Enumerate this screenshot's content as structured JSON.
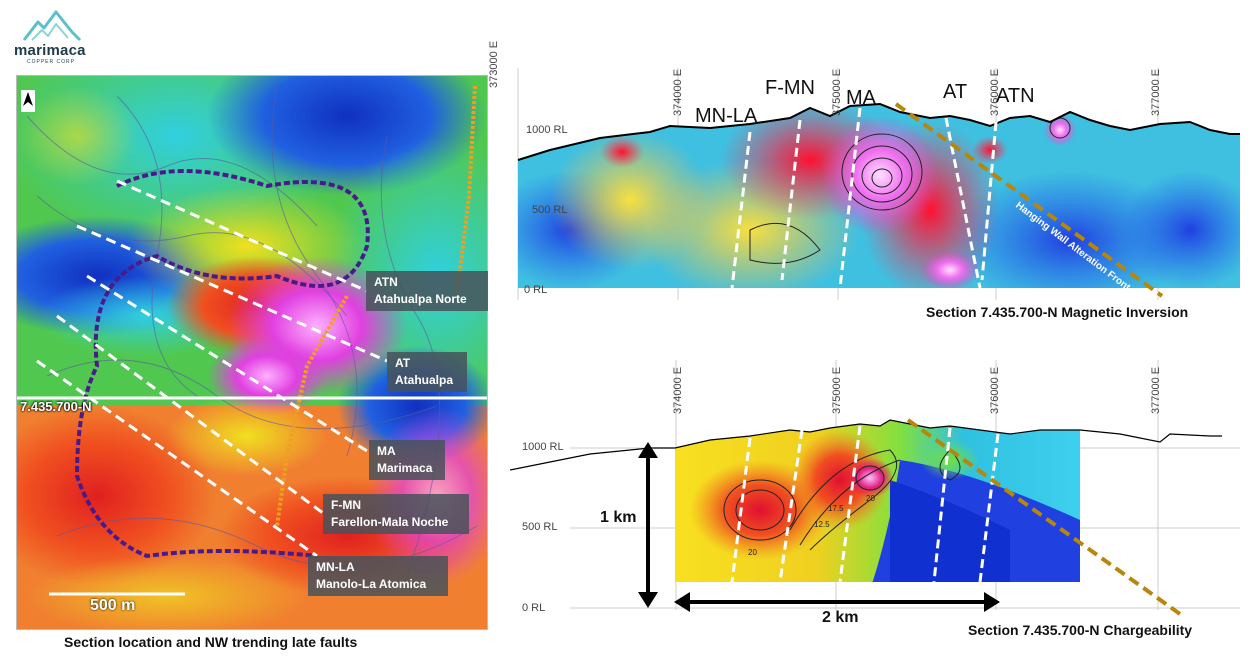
{
  "logo": {
    "name": "marimaca",
    "tagline": "COPPER CORP"
  },
  "map": {
    "caption": "Section location and NW trending late faults",
    "section_line_label": "7.435.700-N",
    "scale_bar_label": "500 m",
    "fault_labels": [
      {
        "code": "ATN",
        "name": "Atahualpa Norte"
      },
      {
        "code": "AT",
        "name": "Atahualpa"
      },
      {
        "code": "MA",
        "name": "Marimaca"
      },
      {
        "code": "F-MN",
        "name": "Farellon-Mala Noche"
      },
      {
        "code": "MN-LA",
        "name": "Manolo-La Atomica"
      }
    ]
  },
  "magnetic_section": {
    "title": "Section 7.435.700-N Magnetic Inversion",
    "eastings": [
      "373000 E",
      "374000 E",
      "375000 E",
      "376000 E",
      "377000 E"
    ],
    "rl_labels": [
      "1000 RL",
      "500 RL",
      "0 RL"
    ],
    "fault_labels": [
      "MN-LA",
      "F-MN",
      "MA",
      "AT",
      "ATN"
    ],
    "front_label": "Hanging Wall Alteration Front"
  },
  "chargeability_section": {
    "title": "Section 7.435.700-N Chargeability",
    "eastings": [
      "374000 E",
      "375000 E",
      "376000 E",
      "377000 E"
    ],
    "rl_labels": [
      "1000 RL",
      "500 RL",
      "0 RL"
    ],
    "vertical_dimension": "1 km",
    "horizontal_dimension": "2 km",
    "contour_labels": [
      "20",
      "12.5",
      "17.5",
      "20"
    ]
  },
  "colors": {
    "fault_dash": "#ffffff",
    "front_dash": "#b8860b",
    "label_box": "#48525a",
    "logo": "#5bc0c8"
  }
}
